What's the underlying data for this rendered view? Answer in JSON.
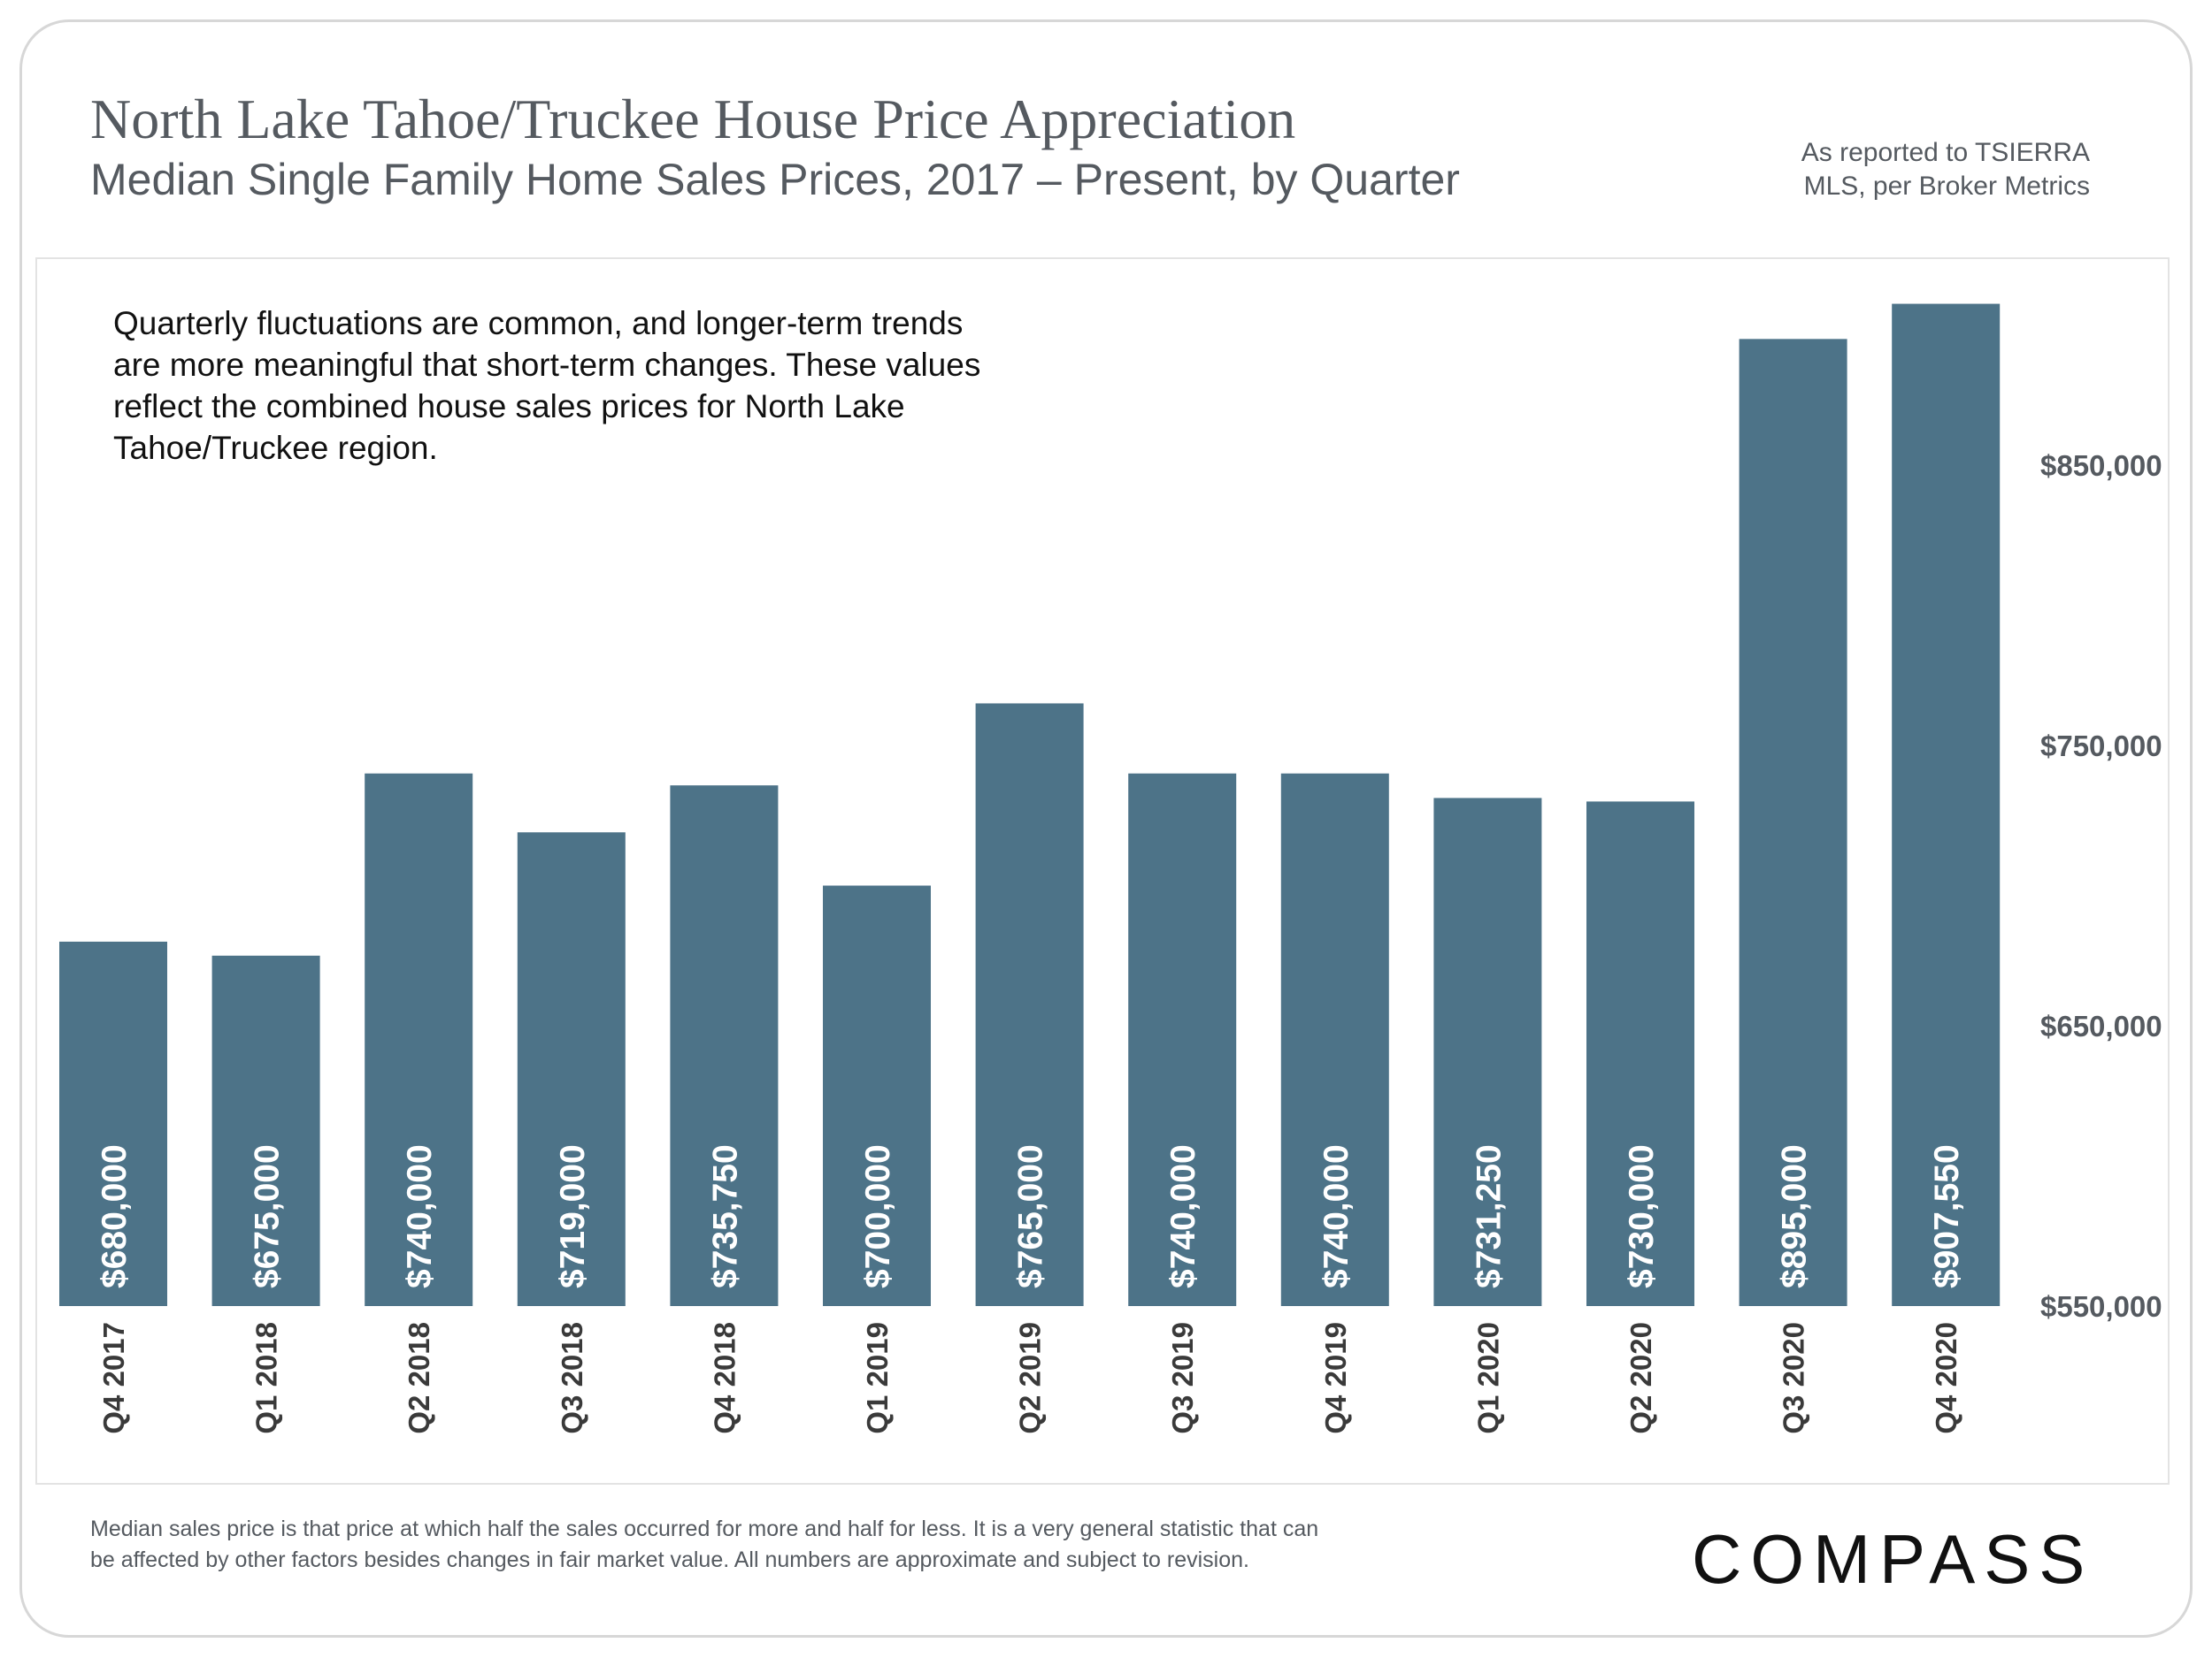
{
  "header": {
    "title": "North Lake Tahoe/Truckee House Price Appreciation",
    "subtitle": "Median Single Family Home Sales Prices, 2017 – Present, by Quarter",
    "source_line1": "As reported to TSIERRA",
    "source_line2": "MLS, per Broker Metrics"
  },
  "annotation": {
    "lines": [
      "Quarterly fluctuations are common, and longer-term trends",
      "are more meaningful that short-term changes. These values",
      "reflect the combined house sales prices for North Lake",
      "Tahoe/Truckee region."
    ]
  },
  "footer": {
    "note_line1": "Median sales price is that price at which half the sales occurred for more and half for less. It is a very general statistic that can",
    "note_line2": "be affected by other factors besides changes in fair market value. All numbers are approximate and subject to revision.",
    "logo_text": "COMPASS"
  },
  "colors": {
    "bar": "#4d7388",
    "bar_label": "#ffffff",
    "text": "#555a60"
  },
  "chart_data": {
    "type": "bar",
    "title": "North Lake Tahoe/Truckee House Price Appreciation",
    "subtitle": "Median Single Family Home Sales Prices, 2017 – Present, by Quarter",
    "categories": [
      "Q4 2017",
      "Q1 2018",
      "Q2 2018",
      "Q3 2018",
      "Q4 2018",
      "Q1 2019",
      "Q2 2019",
      "Q3 2019",
      "Q4 2019",
      "Q1 2020",
      "Q2 2020",
      "Q3 2020",
      "Q4 2020"
    ],
    "values": [
      680000,
      675000,
      740000,
      719000,
      735750,
      700000,
      765000,
      740000,
      740000,
      731250,
      730000,
      895000,
      907550
    ],
    "value_labels": [
      "$680,000",
      "$675,000",
      "$740,000",
      "$719,000",
      "$735,750",
      "$700,000",
      "$765,000",
      "$740,000",
      "$740,000",
      "$731,250",
      "$730,000",
      "$895,000",
      "$907,550"
    ],
    "y_ticks": [
      550000,
      650000,
      750000,
      850000
    ],
    "y_tick_labels": [
      "$550,000",
      "$650,000",
      "$750,000",
      "$850,000"
    ],
    "ylim": [
      550000,
      910000
    ],
    "y_axis_side": "right",
    "grid": false,
    "legend": "none",
    "xlabel": "",
    "ylabel": ""
  }
}
